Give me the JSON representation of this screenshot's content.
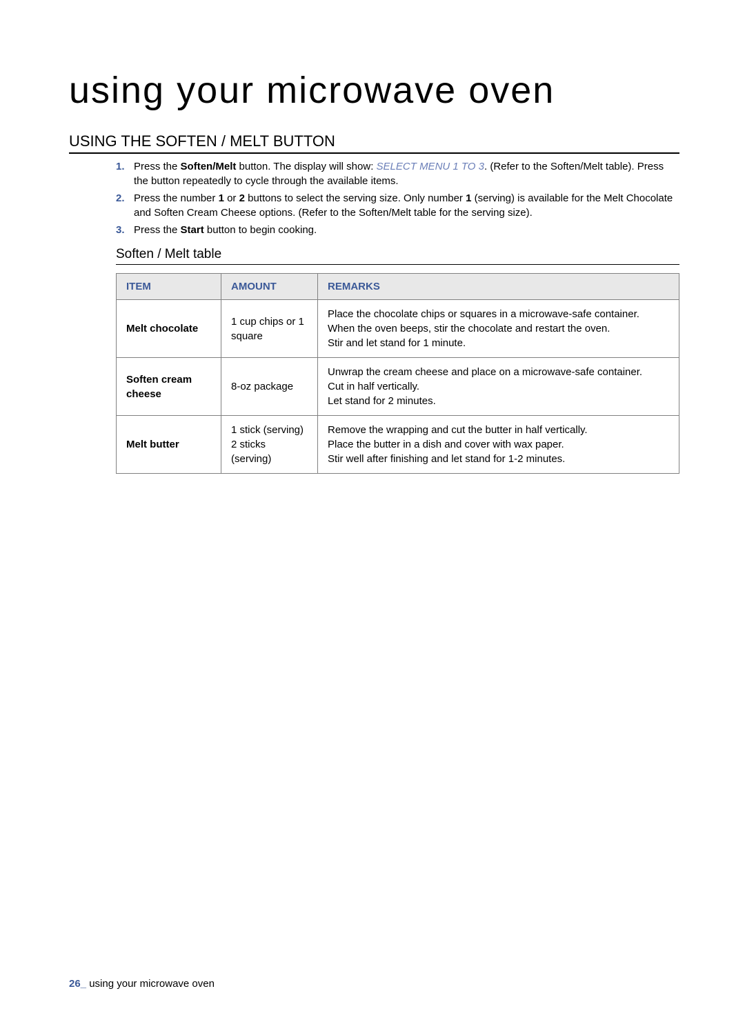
{
  "page": {
    "title": "using your microwave oven",
    "section_heading": "USING THE SOFTEN / MELT BUTTON",
    "sub_heading": "Soften / Melt table",
    "footer_page_num": "26_",
    "footer_text": " using your microwave oven"
  },
  "instructions": [
    {
      "number": "1.",
      "prefix": "Press the ",
      "bold1": "Soften/Melt",
      "mid1": " button. The display will show: ",
      "italic": "SELECT MENU 1 TO 3",
      "suffix": ". (Refer to the Soften/Melt table). Press the button repeatedly to cycle through the available items."
    },
    {
      "number": "2.",
      "prefix": "Press the number ",
      "bold1": "1",
      "mid1": " or ",
      "bold2": "2",
      "mid2": " buttons to select the serving size. Only number ",
      "bold3": "1",
      "suffix": " (serving) is available for the Melt Chocolate and Soften Cream Cheese options. (Refer to the Soften/Melt table for the serving size)."
    },
    {
      "number": "3.",
      "prefix": "Press the ",
      "bold1": "Start",
      "suffix": " button to begin cooking."
    }
  ],
  "table": {
    "headers": {
      "item": "ITEM",
      "amount": "AMOUNT",
      "remarks": "REMARKS"
    },
    "rows": [
      {
        "item": "Melt chocolate",
        "amount": "1 cup chips or 1 square",
        "remarks": "Place the chocolate chips or squares in a microwave-safe container.\nWhen the oven beeps, stir the chocolate and restart the oven.\nStir and let stand for 1 minute."
      },
      {
        "item": "Soften cream cheese",
        "amount": "8-oz package",
        "remarks": "Unwrap the cream cheese and place on a microwave-safe container.\nCut in half vertically.\nLet stand for 2 minutes."
      },
      {
        "item": "Melt butter",
        "amount": "1 stick (serving)\n2 sticks (serving)",
        "remarks": "Remove the wrapping and cut the butter in half vertically.\nPlace the butter in a dish and cover with wax paper.\nStir well after finishing and let stand for 1-2 minutes."
      }
    ]
  },
  "colors": {
    "accent_blue": "#3b5998",
    "light_blue": "#6b7fb8",
    "header_bg": "#e8e8e8",
    "border": "#808080",
    "text": "#000000",
    "background": "#ffffff"
  }
}
